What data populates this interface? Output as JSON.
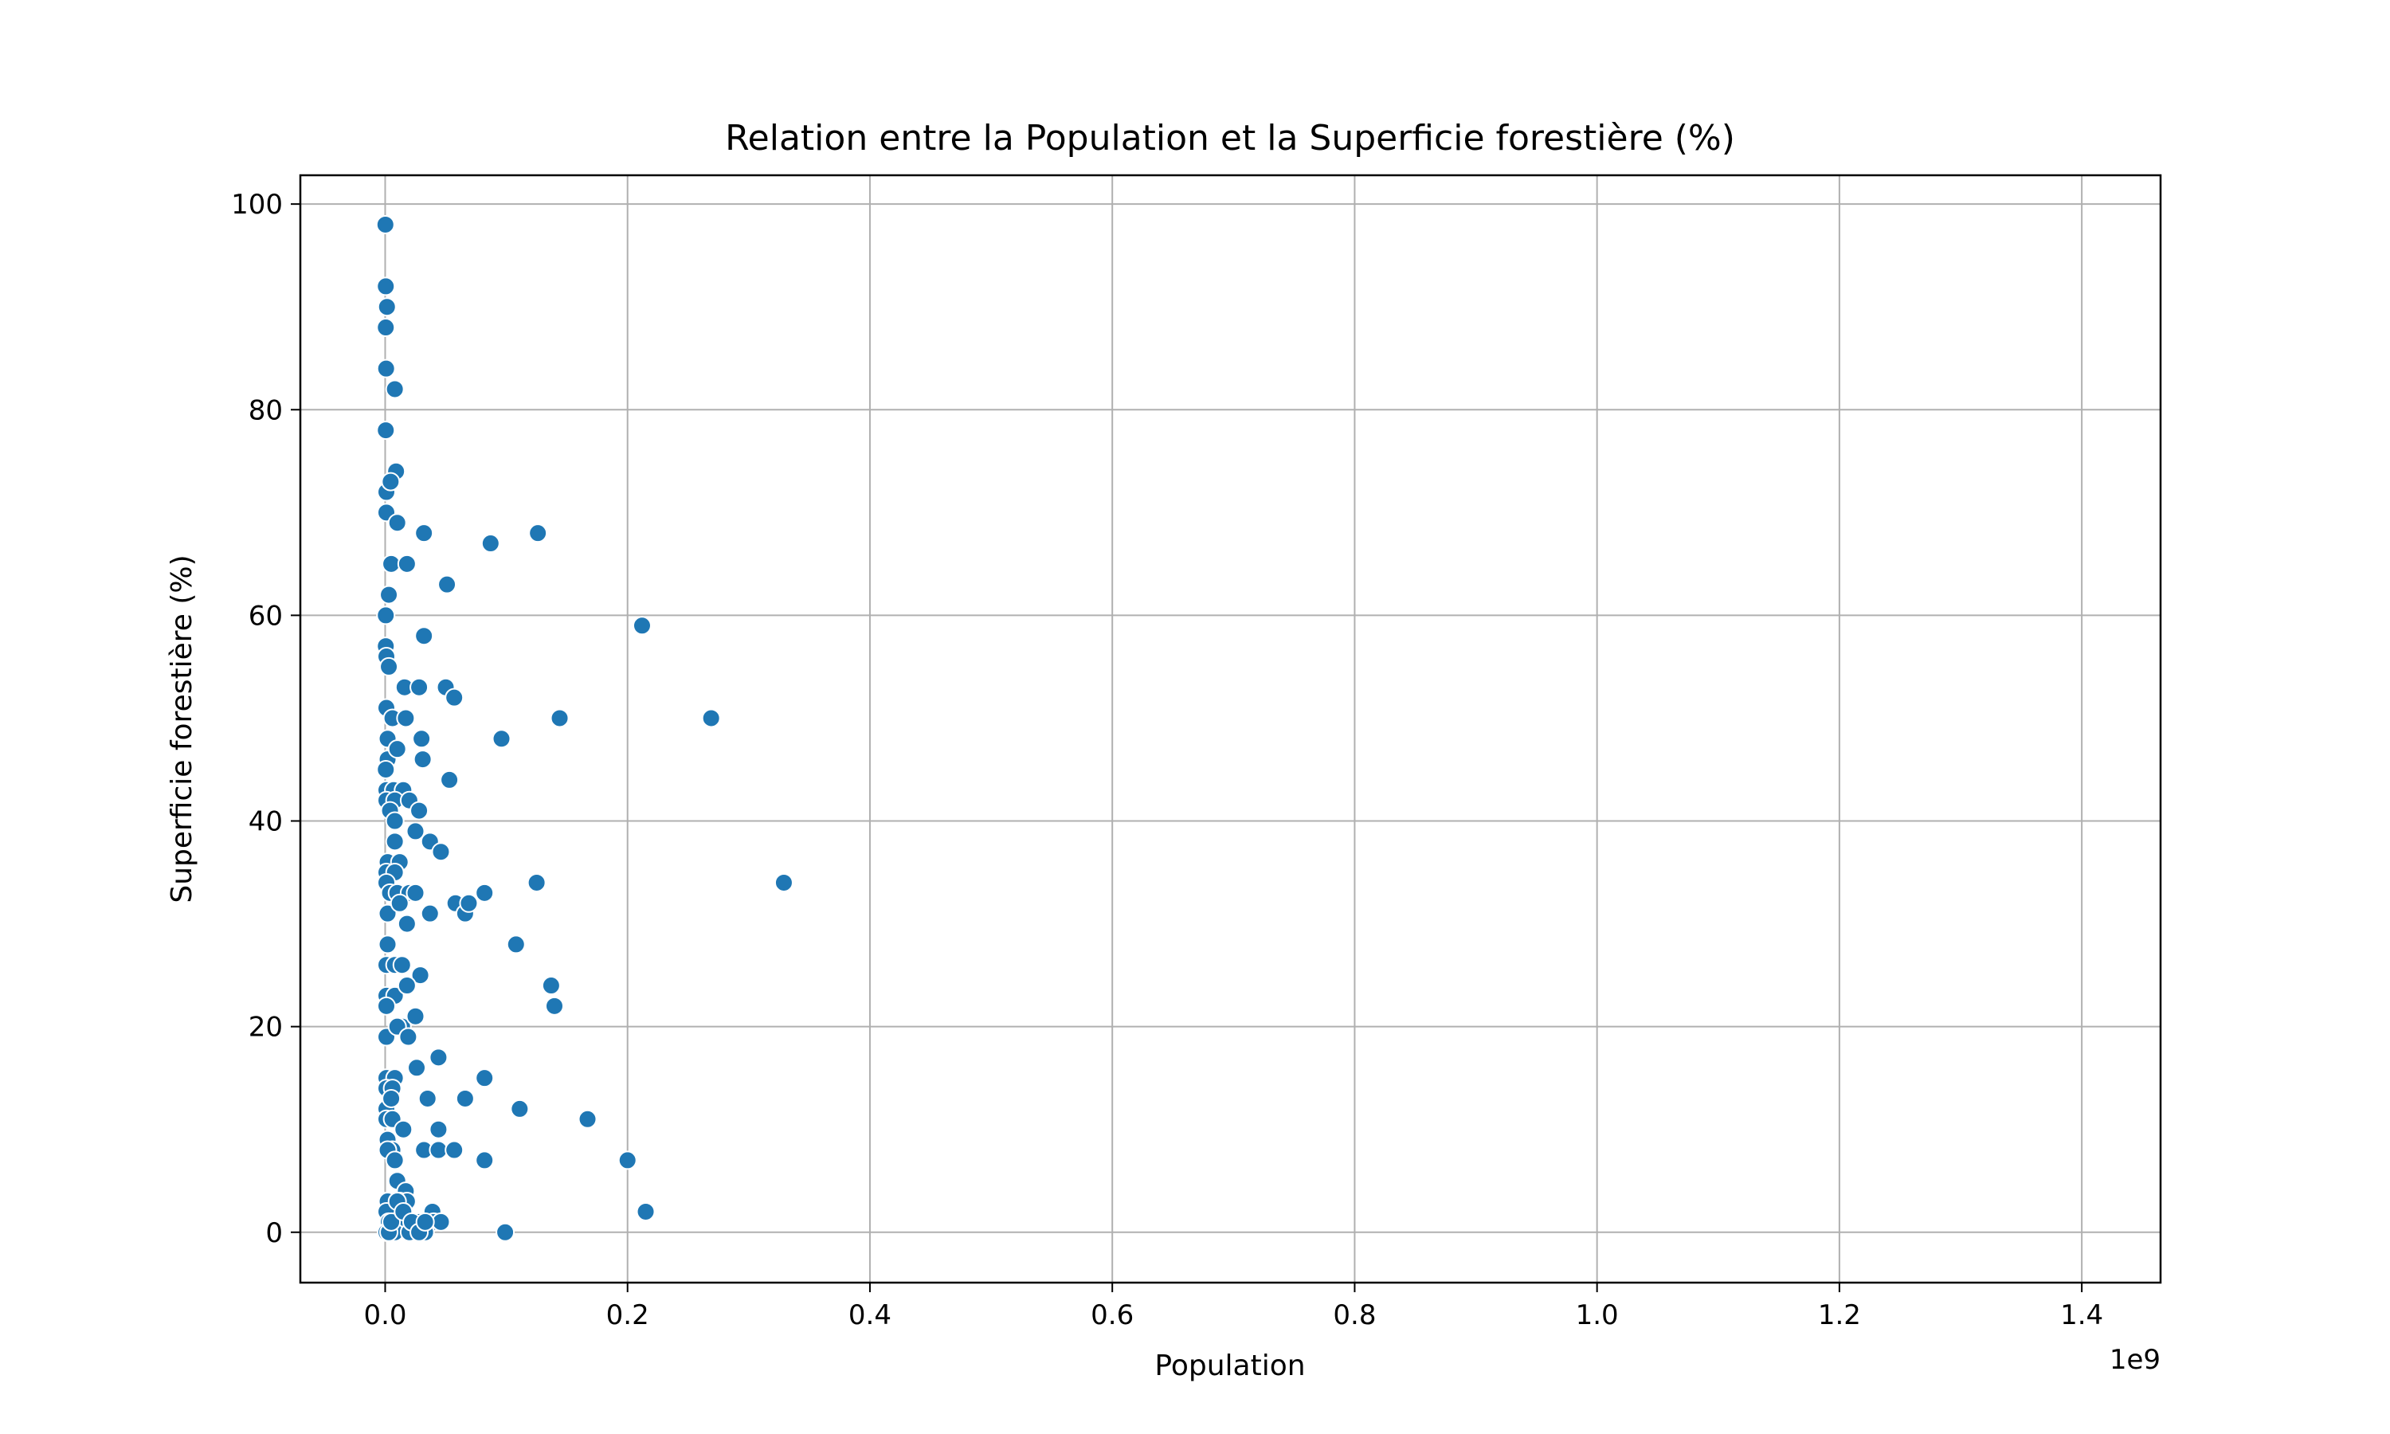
{
  "chart_data": {
    "type": "scatter",
    "title": "Relation entre la Population et la Superficie forestière (%)",
    "xlabel": "Population",
    "ylabel": "Superficie forestière (%)",
    "x_scale_label": "1e9",
    "x_unit_multiplier": 1000000000,
    "xlim": [
      -0.07,
      1.465
    ],
    "ylim": [
      -4.9,
      102.8
    ],
    "x_ticks": [
      0.0,
      0.2,
      0.4,
      0.6,
      0.8,
      1.0,
      1.2,
      1.4
    ],
    "x_tick_labels": [
      "0.0",
      "0.2",
      "0.4",
      "0.6",
      "0.8",
      "1.0",
      "1.2",
      "1.4"
    ],
    "y_ticks": [
      0,
      20,
      40,
      60,
      80,
      100
    ],
    "y_tick_labels": [
      "0",
      "20",
      "40",
      "60",
      "80",
      "100"
    ],
    "grid": true,
    "legend": false,
    "marker_color": "#1f77b4",
    "marker_edge_color": "#ffffff",
    "x": [
      0.0002,
      0.0005,
      0.0015,
      0.0005,
      0.0008,
      0.008,
      0.0005,
      0.001,
      0.009,
      0.0045,
      0.001,
      0.01,
      0.032,
      0.087,
      0.126,
      0.005,
      0.018,
      0.051,
      0.003,
      0.212,
      0.0005,
      0.032,
      0.0005,
      0.001,
      0.003,
      0.016,
      0.028,
      0.05,
      0.057,
      0.001,
      0.006,
      0.017,
      0.144,
      0.269,
      0.002,
      0.03,
      0.096,
      0.002,
      0.01,
      0.031,
      0.0005,
      0.053,
      0.001,
      0.007,
      0.015,
      0.001,
      0.008,
      0.02,
      0.028,
      0.004,
      0.008,
      0.025,
      0.008,
      0.037,
      0.046,
      0.002,
      0.012,
      0.001,
      0.008,
      0.001,
      0.004,
      0.01,
      0.02,
      0.025,
      0.082,
      0.125,
      0.329,
      0.002,
      0.012,
      0.037,
      0.058,
      0.066,
      0.069,
      0.018,
      0.002,
      0.108,
      0.001,
      0.008,
      0.014,
      0.029,
      0.136,
      0.001,
      0.008,
      0.018,
      0.001,
      0.01,
      0.014,
      0.025,
      0.137,
      0.1397,
      0.001,
      0.01,
      0.019,
      0.044,
      0.001,
      0.008,
      0.026,
      0.082,
      0.001,
      0.006,
      0.035,
      0.066,
      0.001,
      0.005,
      0.111,
      0.001,
      0.006,
      0.016,
      0.167,
      0.002,
      0.015,
      0.044,
      0.006,
      0.002,
      0.032,
      0.044,
      0.057,
      0.008,
      0.082,
      0.2,
      0.01,
      0.001,
      0.017,
      0.002,
      0.012,
      0.018,
      0.001,
      0.008,
      0.039,
      0.215,
      0.003,
      0.009,
      0.017,
      0.023,
      0.028,
      0.04,
      0.046,
      0.001,
      0.008,
      0.02,
      0.033,
      0.099,
      0.001,
      0.003,
      0.005,
      0.01,
      0.015,
      0.022,
      0.028,
      0.033
    ],
    "y": [
      98,
      92,
      90,
      88,
      84,
      82,
      78,
      72,
      74,
      73,
      70,
      69,
      68,
      67,
      68,
      65,
      65,
      63,
      62,
      59,
      60,
      58,
      57,
      56,
      55,
      53,
      53,
      53,
      52,
      51,
      50,
      50,
      50,
      50,
      48,
      48,
      48,
      46,
      47,
      46,
      45,
      44,
      43,
      43,
      43,
      42,
      42,
      42,
      41,
      41,
      40,
      39,
      38,
      38,
      37,
      36,
      36,
      35,
      35,
      34,
      33,
      33,
      33,
      33,
      33,
      34,
      34,
      31,
      32,
      31,
      32,
      31,
      32,
      30,
      28,
      28,
      26,
      26,
      26,
      25,
      24,
      23,
      23,
      24,
      22,
      20,
      20,
      21,
      24,
      22,
      19,
      20,
      19,
      17,
      15,
      15,
      16,
      15,
      14,
      14,
      13,
      13,
      12,
      13,
      12,
      11,
      11,
      10,
      11,
      9,
      10,
      10,
      8,
      8,
      8,
      8,
      8,
      7,
      7,
      7,
      5,
      3,
      4,
      3,
      3,
      3,
      2,
      1,
      2,
      2,
      1,
      1,
      1,
      1,
      1,
      1,
      1,
      0,
      0,
      0,
      0,
      0,
      0,
      0,
      1,
      3,
      2,
      1,
      0,
      1
    ]
  }
}
